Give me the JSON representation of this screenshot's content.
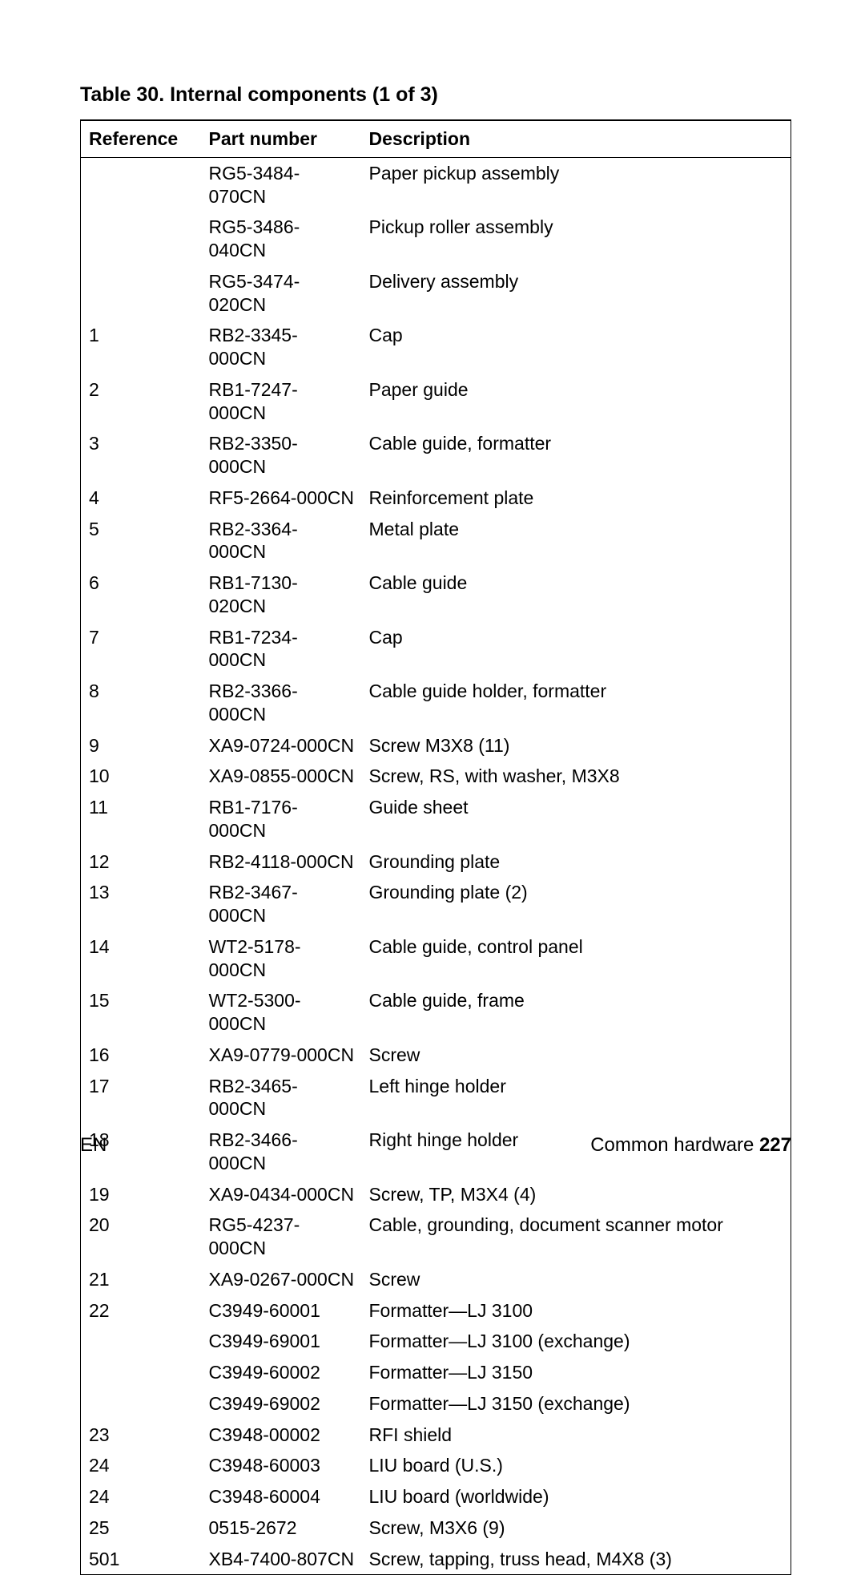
{
  "title": "Table 30.   Internal components (1 of 3)",
  "columns": [
    "Reference",
    "Part number",
    "Description"
  ],
  "rows": [
    [
      "",
      "RG5-3484-070CN",
      "Paper pickup assembly"
    ],
    [
      "",
      "RG5-3486-040CN",
      "Pickup roller assembly"
    ],
    [
      "",
      "RG5-3474-020CN",
      "Delivery assembly"
    ],
    [
      "1",
      "RB2-3345-000CN",
      "Cap"
    ],
    [
      "2",
      "RB1-7247-000CN",
      "Paper guide"
    ],
    [
      "3",
      "RB2-3350-000CN",
      "Cable guide, formatter"
    ],
    [
      "4",
      "RF5-2664-000CN",
      "Reinforcement plate"
    ],
    [
      "5",
      "RB2-3364-000CN",
      "Metal plate"
    ],
    [
      "6",
      "RB1-7130-020CN",
      "Cable guide"
    ],
    [
      "7",
      "RB1-7234-000CN",
      "Cap"
    ],
    [
      "8",
      "RB2-3366-000CN",
      "Cable guide holder, formatter"
    ],
    [
      "9",
      "XA9-0724-000CN",
      "Screw M3X8 (11)"
    ],
    [
      "10",
      "XA9-0855-000CN",
      "Screw, RS, with washer, M3X8"
    ],
    [
      "11",
      "RB1-7176-000CN",
      "Guide sheet"
    ],
    [
      "12",
      "RB2-4118-000CN",
      "Grounding plate"
    ],
    [
      "13",
      "RB2-3467-000CN",
      "Grounding plate (2)"
    ],
    [
      "14",
      "WT2-5178-000CN",
      "Cable guide, control panel"
    ],
    [
      "15",
      "WT2-5300-000CN",
      "Cable guide, frame"
    ],
    [
      "16",
      "XA9-0779-000CN",
      "Screw"
    ],
    [
      "17",
      "RB2-3465-000CN",
      "Left hinge holder"
    ],
    [
      "18",
      "RB2-3466-000CN",
      "Right hinge holder"
    ],
    [
      "19",
      "XA9-0434-000CN",
      "Screw, TP, M3X4 (4)"
    ],
    [
      "20",
      "RG5-4237-000CN",
      "Cable, grounding, document scanner motor"
    ],
    [
      "21",
      "XA9-0267-000CN",
      "Screw"
    ],
    [
      "22",
      "C3949-60001",
      "Formatter—LJ 3100"
    ],
    [
      "",
      "C3949-69001",
      "Formatter—LJ 3100 (exchange)"
    ],
    [
      "",
      "C3949-60002",
      "Formatter—LJ 3150"
    ],
    [
      "",
      "C3949-69002",
      "Formatter—LJ 3150 (exchange)"
    ],
    [
      "23",
      "C3948-00002",
      "RFI shield"
    ],
    [
      "24",
      "C3948-60003",
      "LIU board (U.S.)"
    ],
    [
      "24",
      "C3948-60004",
      "LIU board (worldwide)"
    ],
    [
      "25",
      "0515-2672",
      "Screw, M3X6 (9)"
    ],
    [
      "501",
      "XB4-7400-807CN",
      "Screw, tapping, truss head, M4X8 (3)"
    ]
  ],
  "footer": {
    "left": "EN",
    "right_text": "Common hardware ",
    "page_number": "227"
  }
}
